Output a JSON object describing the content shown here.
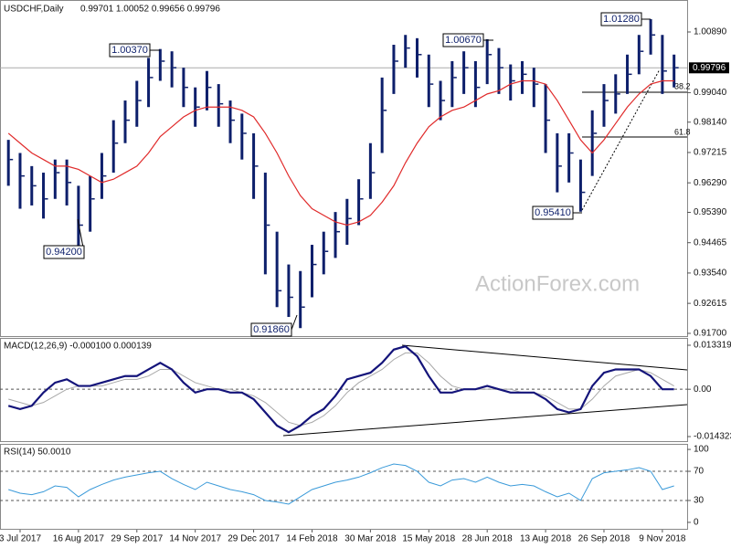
{
  "chart_data": {
    "type": "ohlc",
    "title": "USDCHF,Daily",
    "quote": "0.99701 1.00052 0.99656 0.99796",
    "watermark": "ActionForex.com",
    "categories": [
      null,
      "3 Jul 2017",
      null,
      null,
      null,
      null,
      "16 Aug 2017",
      null,
      null,
      null,
      null,
      "29 Sep 2017",
      null,
      null,
      null,
      null,
      "14 Nov 2017",
      null,
      null,
      null,
      null,
      "29 Dec 2017",
      null,
      null,
      null,
      null,
      "14 Feb 2018",
      null,
      null,
      null,
      null,
      "30 Mar 2018",
      null,
      null,
      null,
      null,
      "15 May 2018",
      null,
      null,
      null,
      null,
      "28 Jun 2018",
      null,
      null,
      null,
      null,
      "13 Aug 2018",
      null,
      null,
      null,
      null,
      "26 Sep 2018",
      null,
      null,
      null,
      null,
      "9 Nov 2018",
      null
    ],
    "high": [
      0.976,
      0.972,
      0.968,
      0.966,
      0.97,
      0.97,
      0.962,
      0.965,
      0.972,
      0.982,
      0.988,
      0.994,
      1.001,
      1.0037,
      1.003,
      0.998,
      0.992,
      0.997,
      0.993,
      0.988,
      0.984,
      0.978,
      0.966,
      0.948,
      0.938,
      0.936,
      0.944,
      0.948,
      0.954,
      0.958,
      0.964,
      0.975,
      0.995,
      1.005,
      1.008,
      1.007,
      1.002,
      0.994,
      1.0,
      1.003,
      1.0,
      1.0067,
      1.004,
      0.999,
      1.0,
      0.998,
      0.993,
      0.978,
      0.978,
      0.97,
      0.985,
      0.993,
      0.996,
      1.002,
      1.008,
      1.0128,
      1.008,
      1.002
    ],
    "low": [
      0.962,
      0.955,
      0.956,
      0.952,
      0.958,
      0.956,
      0.942,
      0.948,
      0.958,
      0.966,
      0.975,
      0.98,
      0.986,
      0.994,
      0.992,
      0.986,
      0.98,
      0.985,
      0.98,
      0.975,
      0.97,
      0.958,
      0.935,
      0.925,
      0.922,
      0.9186,
      0.928,
      0.935,
      0.94,
      0.944,
      0.95,
      0.958,
      0.972,
      0.99,
      0.998,
      0.995,
      0.986,
      0.982,
      0.986,
      0.99,
      0.986,
      0.993,
      0.99,
      0.988,
      0.99,
      0.986,
      0.972,
      0.96,
      0.963,
      0.9541,
      0.965,
      0.98,
      0.984,
      0.99,
      0.996,
      1.002,
      0.99,
      0.992
    ],
    "close": [
      0.97,
      0.965,
      0.962,
      0.958,
      0.966,
      0.963,
      0.95,
      0.958,
      0.965,
      0.975,
      0.982,
      0.988,
      0.995,
      1.0,
      0.998,
      0.992,
      0.986,
      0.992,
      0.987,
      0.982,
      0.978,
      0.968,
      0.95,
      0.93,
      0.928,
      0.925,
      0.938,
      0.942,
      0.948,
      0.952,
      0.958,
      0.966,
      0.985,
      1.0,
      1.004,
      1.002,
      0.993,
      0.988,
      0.995,
      0.998,
      0.992,
      1.002,
      0.998,
      0.994,
      0.996,
      0.993,
      0.982,
      0.968,
      0.972,
      0.96,
      0.978,
      0.988,
      0.99,
      0.996,
      1.003,
      1.008,
      0.997,
      0.998
    ],
    "color": "#0d1f6b",
    "ma_values": [
      0.978,
      0.975,
      0.972,
      0.97,
      0.968,
      0.968,
      0.967,
      0.965,
      0.963,
      0.964,
      0.966,
      0.968,
      0.972,
      0.977,
      0.98,
      0.983,
      0.985,
      0.986,
      0.986,
      0.986,
      0.985,
      0.983,
      0.978,
      0.972,
      0.965,
      0.959,
      0.955,
      0.953,
      0.951,
      0.95,
      0.951,
      0.953,
      0.957,
      0.962,
      0.969,
      0.975,
      0.98,
      0.983,
      0.985,
      0.986,
      0.988,
      0.99,
      0.991,
      0.993,
      0.994,
      0.994,
      0.993,
      0.988,
      0.982,
      0.976,
      0.972,
      0.976,
      0.981,
      0.986,
      0.99,
      0.993,
      0.994,
      0.994
    ],
    "ma_color": "#e02a2a",
    "ylim": [
      0.91616,
      1.01865
    ],
    "yticks": [
      {
        "value": 1.0089,
        "label": "1.00890"
      },
      {
        "value": 0.9904,
        "label": "0.99040"
      },
      {
        "value": 0.9814,
        "label": "0.98140"
      },
      {
        "value": 0.97215,
        "label": "0.97215"
      },
      {
        "value": 0.9629,
        "label": "0.96290"
      },
      {
        "value": 0.9539,
        "label": "0.95390"
      },
      {
        "value": 0.94465,
        "label": "0.94465"
      },
      {
        "value": 0.9354,
        "label": "0.93540"
      },
      {
        "value": 0.92615,
        "label": "0.92615"
      },
      {
        "value": 0.917,
        "label": "0.91700"
      }
    ],
    "last_price": 0.99796,
    "price_labels": [
      "1.00370",
      "0.94200",
      "0.91860",
      "1.00670",
      "0.95410",
      "1.01280"
    ],
    "fib_labels": [
      "38.2",
      "61.8"
    ],
    "macd": {
      "label": "MACD(12,26,9) -0.000100 0.000139",
      "values": [
        -0.005,
        -0.006,
        -0.005,
        -0.001,
        0.002,
        0.003,
        0.001,
        0.001,
        0.002,
        0.003,
        0.004,
        0.004,
        0.006,
        0.008,
        0.006,
        0.002,
        -0.001,
        0.0,
        0.0,
        -0.001,
        -0.001,
        -0.003,
        -0.007,
        -0.011,
        -0.013,
        -0.011,
        -0.008,
        -0.006,
        -0.002,
        0.003,
        0.004,
        0.005,
        0.008,
        0.012,
        0.013,
        0.01,
        0.004,
        -0.001,
        -0.001,
        0.0,
        0.0,
        0.001,
        0.0,
        -0.001,
        -0.001,
        -0.001,
        -0.003,
        -0.006,
        -0.007,
        -0.006,
        0.001,
        0.005,
        0.006,
        0.006,
        0.006,
        0.004,
        0.0,
        0.0
      ],
      "signal": [
        -0.003,
        -0.004,
        -0.005,
        -0.004,
        -0.002,
        0.0,
        0.001,
        0.001,
        0.001,
        0.002,
        0.003,
        0.003,
        0.004,
        0.006,
        0.006,
        0.004,
        0.002,
        0.001,
        0.0,
        0.0,
        -0.001,
        -0.002,
        -0.004,
        -0.007,
        -0.01,
        -0.011,
        -0.01,
        -0.008,
        -0.005,
        -0.001,
        0.002,
        0.004,
        0.006,
        0.009,
        0.011,
        0.011,
        0.008,
        0.004,
        0.001,
        0.0,
        0.0,
        0.0,
        0.0,
        0.0,
        -0.001,
        -0.001,
        -0.002,
        -0.004,
        -0.006,
        -0.006,
        -0.003,
        0.001,
        0.004,
        0.005,
        0.006,
        0.005,
        0.003,
        0.001
      ],
      "color": "#14147a",
      "signal_color": "#a8a8a8",
      "ylim": [
        -0.015705,
        0.01553
      ],
      "yticks": [
        0.013319,
        {
          "value": 0,
          "label": "0.00"
        },
        -0.014323
      ]
    },
    "rsi": {
      "label": "RSI(14) 50.0010",
      "values": [
        45,
        40,
        38,
        42,
        50,
        48,
        35,
        45,
        52,
        58,
        62,
        65,
        68,
        70,
        60,
        52,
        45,
        55,
        50,
        45,
        42,
        38,
        30,
        28,
        25,
        35,
        45,
        50,
        55,
        58,
        62,
        68,
        75,
        80,
        78,
        70,
        55,
        50,
        58,
        60,
        55,
        62,
        55,
        50,
        52,
        50,
        42,
        35,
        40,
        30,
        60,
        68,
        70,
        72,
        75,
        70,
        45,
        50
      ],
      "color": "#3a9ad9",
      "ylim": [
        -10.1,
        107.6
      ],
      "yticks": [
        100,
        70,
        30,
        0
      ]
    }
  }
}
